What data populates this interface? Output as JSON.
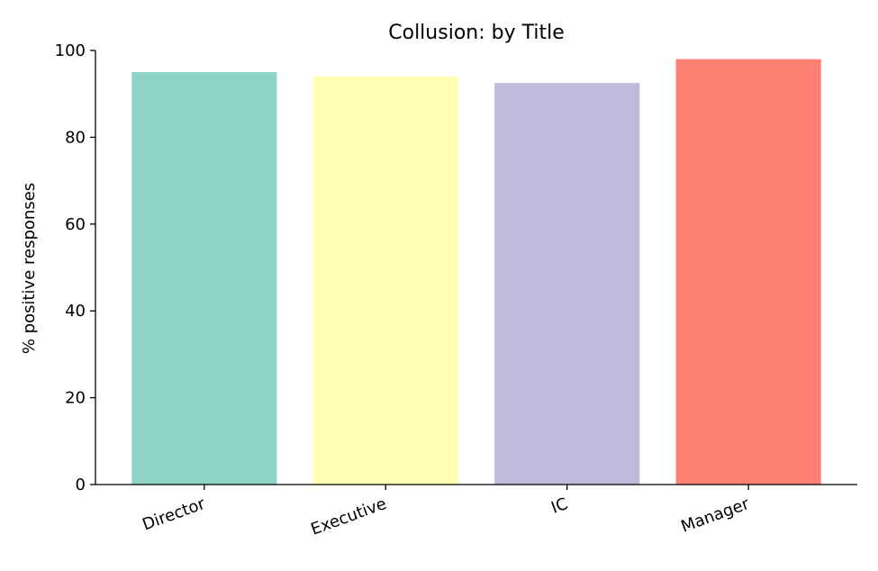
{
  "chart_data": {
    "type": "bar",
    "title": "Collusion: by Title",
    "xlabel": "",
    "ylabel": "% positive responses",
    "categories": [
      "Director",
      "Executive",
      "IC",
      "Manager"
    ],
    "values": [
      95,
      94,
      92.5,
      98
    ],
    "colors": [
      "#8dd3c7",
      "#ffffb3",
      "#bebada",
      "#fb8072"
    ],
    "ylim": [
      0,
      100
    ],
    "yticks": [
      "0",
      "20",
      "40",
      "60",
      "80",
      "100"
    ],
    "grid": false,
    "legend": "none"
  }
}
